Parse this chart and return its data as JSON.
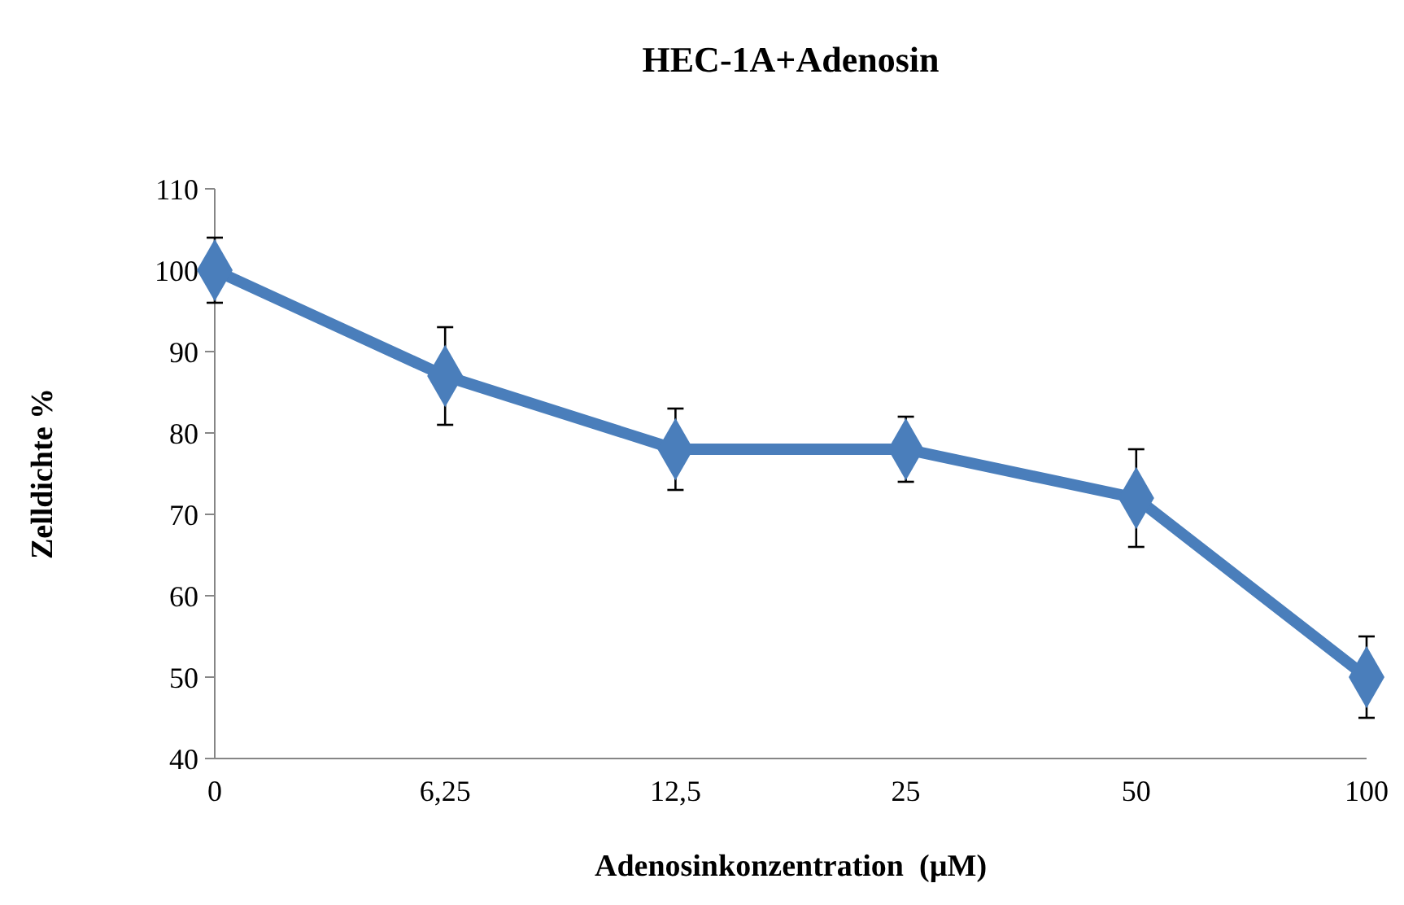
{
  "chart_data": {
    "type": "line",
    "title": "HEC-1A+Adenosin",
    "xlabel": "Adenosinkonzentration  (µM)",
    "ylabel": "Zelldichte %",
    "categories": [
      "0",
      "6,25",
      "12,5",
      "25",
      "50",
      "100"
    ],
    "series": [
      {
        "color": "#4a7ebb",
        "values": [
          100,
          87,
          78,
          78,
          72,
          50
        ],
        "errors": [
          4,
          6,
          5,
          4,
          6,
          5
        ]
      }
    ],
    "ylim": [
      40,
      110
    ],
    "yticks": [
      40,
      50,
      60,
      70,
      80,
      90,
      100,
      110
    ],
    "grid": false,
    "marker": "diamond",
    "line_style": "solid"
  }
}
